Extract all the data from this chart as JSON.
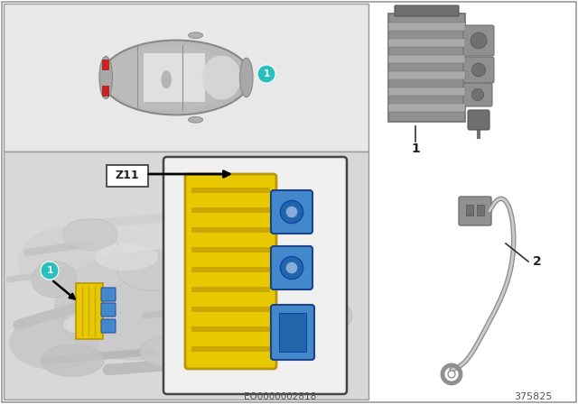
{
  "background_color": "#ffffff",
  "left_bg": "#e8e8e8",
  "top_panel_bg": "#e0e0e0",
  "engine_panel_bg": "#d0d0d0",
  "callout_circle_color": "#2abfbf",
  "module_yellow": "#e8c800",
  "module_blue": "#4488cc",
  "arrow_color": "#111111",
  "part_number_text": "375825",
  "diagram_ref_text": "EO0000002818",
  "border_color": "#888888",
  "gray_part": "#909090",
  "gray_dark": "#707070",
  "gray_mid": "#aaaaaa"
}
